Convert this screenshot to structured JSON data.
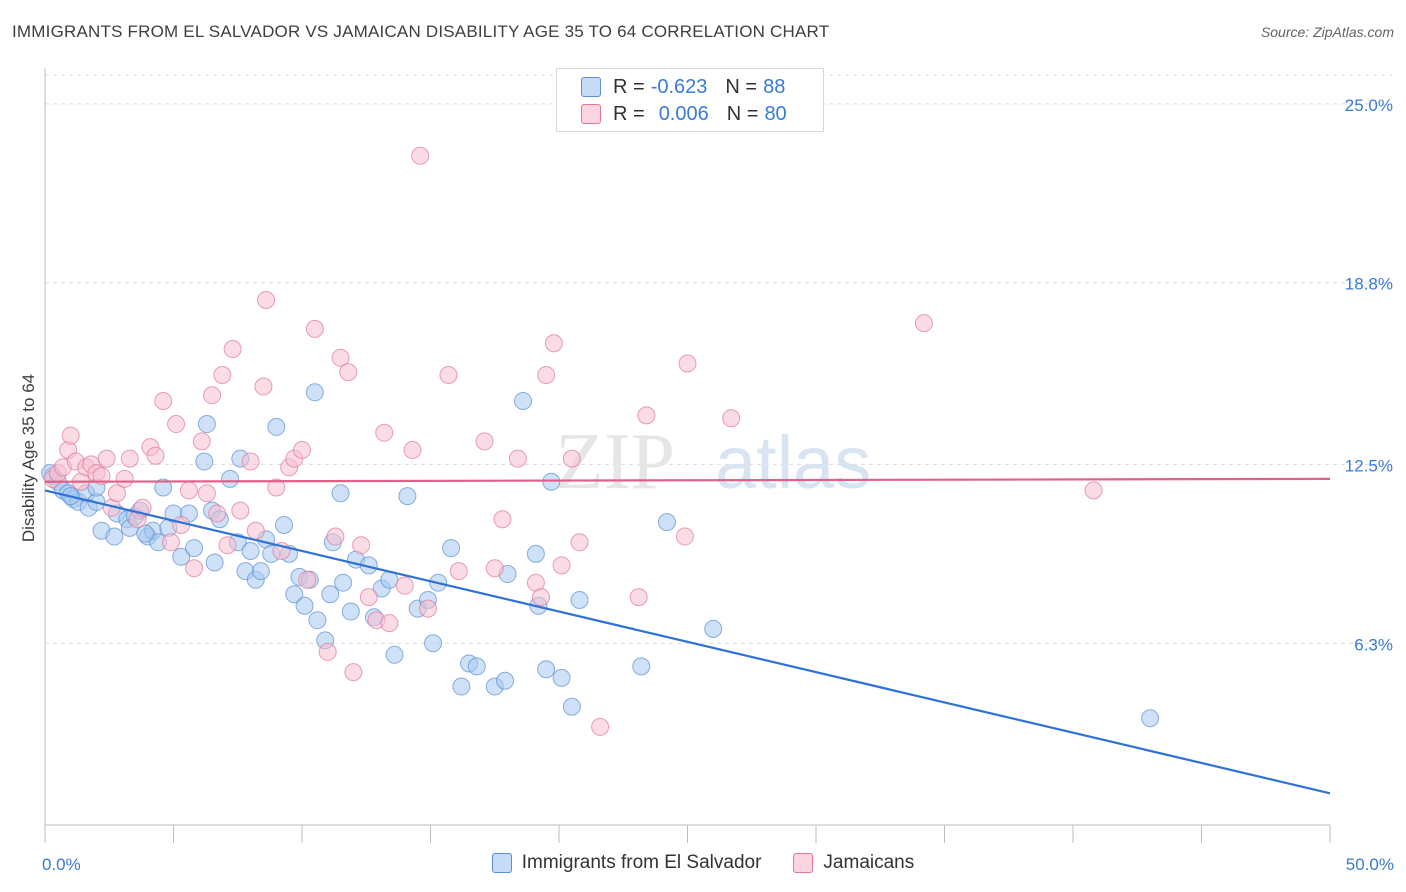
{
  "title": "IMMIGRANTS FROM EL SALVADOR VS JAMAICAN DISABILITY AGE 35 TO 64 CORRELATION CHART",
  "source": "Source: ZipAtlas.com",
  "watermark": {
    "zip": "ZIP",
    "atlas": "atlas"
  },
  "legend": {
    "r_label": "R =",
    "n_label": "N =",
    "rows": [
      {
        "r": "-0.623",
        "n": "88",
        "color": "#a8c8f0",
        "border": "#5b8fd4"
      },
      {
        "r": "0.006",
        "n": "80",
        "color": "#f8c0d0",
        "border": "#e07898"
      }
    ]
  },
  "chart_data": {
    "type": "scatter",
    "xlabel": "",
    "ylabel": "Disability Age 35 to 64",
    "xlim": [
      0,
      50
    ],
    "ylim": [
      0,
      26
    ],
    "x_tick_labels": [
      "0.0%",
      "50.0%"
    ],
    "y_tick_values": [
      6.3,
      12.5,
      18.8,
      25.0
    ],
    "y_tick_labels": [
      "6.3%",
      "12.5%",
      "18.8%",
      "25.0%"
    ],
    "grid": true,
    "series": [
      {
        "name": "Immigrants from El Salvador",
        "color": "#a8c8f0",
        "stroke": "#5b8fd4",
        "trend_color": "#2f72d6",
        "trend": {
          "x": [
            0,
            50
          ],
          "y": [
            11.6,
            1.1
          ]
        },
        "points": [
          [
            0.3,
            12.1
          ],
          [
            0.5,
            11.9
          ],
          [
            0.7,
            11.6
          ],
          [
            0.9,
            11.5
          ],
          [
            1.1,
            11.3
          ],
          [
            1.3,
            11.2
          ],
          [
            1.6,
            11.5
          ],
          [
            1.7,
            11.0
          ],
          [
            2.0,
            11.2
          ],
          [
            2.0,
            11.7
          ],
          [
            2.2,
            10.2
          ],
          [
            2.7,
            10.0
          ],
          [
            2.8,
            10.8
          ],
          [
            3.2,
            10.6
          ],
          [
            3.3,
            10.3
          ],
          [
            3.5,
            10.7
          ],
          [
            3.7,
            10.9
          ],
          [
            4.0,
            10.0
          ],
          [
            4.2,
            10.2
          ],
          [
            4.4,
            9.8
          ],
          [
            4.6,
            11.7
          ],
          [
            4.8,
            10.3
          ],
          [
            5.0,
            10.8
          ],
          [
            5.3,
            9.3
          ],
          [
            5.6,
            10.8
          ],
          [
            5.8,
            9.6
          ],
          [
            6.2,
            12.6
          ],
          [
            6.3,
            13.9
          ],
          [
            6.5,
            10.9
          ],
          [
            6.6,
            9.1
          ],
          [
            6.8,
            10.6
          ],
          [
            7.2,
            12.0
          ],
          [
            7.5,
            9.8
          ],
          [
            7.6,
            12.7
          ],
          [
            7.8,
            8.8
          ],
          [
            8.0,
            9.5
          ],
          [
            8.2,
            8.5
          ],
          [
            8.4,
            8.8
          ],
          [
            8.6,
            9.9
          ],
          [
            8.8,
            9.4
          ],
          [
            9.0,
            13.8
          ],
          [
            9.3,
            10.4
          ],
          [
            9.5,
            9.4
          ],
          [
            9.7,
            8.0
          ],
          [
            9.9,
            8.6
          ],
          [
            10.1,
            7.6
          ],
          [
            10.3,
            8.5
          ],
          [
            10.5,
            15.0
          ],
          [
            10.6,
            7.1
          ],
          [
            10.9,
            6.4
          ],
          [
            11.1,
            8.0
          ],
          [
            11.2,
            9.8
          ],
          [
            11.5,
            11.5
          ],
          [
            11.6,
            8.4
          ],
          [
            11.9,
            7.4
          ],
          [
            12.1,
            9.2
          ],
          [
            12.6,
            9.0
          ],
          [
            12.8,
            7.2
          ],
          [
            13.1,
            8.2
          ],
          [
            13.4,
            8.5
          ],
          [
            13.6,
            5.9
          ],
          [
            14.1,
            11.4
          ],
          [
            14.5,
            7.5
          ],
          [
            14.9,
            7.8
          ],
          [
            15.1,
            6.3
          ],
          [
            15.3,
            8.4
          ],
          [
            15.8,
            9.6
          ],
          [
            16.2,
            4.8
          ],
          [
            16.5,
            5.6
          ],
          [
            16.8,
            5.5
          ],
          [
            17.5,
            4.8
          ],
          [
            17.9,
            5.0
          ],
          [
            18.0,
            8.7
          ],
          [
            18.6,
            14.7
          ],
          [
            19.1,
            9.4
          ],
          [
            19.2,
            7.6
          ],
          [
            19.5,
            5.4
          ],
          [
            19.7,
            11.9
          ],
          [
            20.1,
            5.1
          ],
          [
            20.5,
            4.1
          ],
          [
            20.8,
            7.8
          ],
          [
            23.2,
            5.5
          ],
          [
            24.2,
            10.5
          ],
          [
            26.0,
            6.8
          ],
          [
            43.0,
            3.7
          ],
          [
            0.2,
            12.2
          ],
          [
            1.0,
            11.4
          ],
          [
            3.9,
            10.1
          ]
        ]
      },
      {
        "name": "Jamaicans",
        "color": "#f8c0d0",
        "stroke": "#e07898",
        "trend_color": "#e0608a",
        "trend": {
          "x": [
            0,
            50
          ],
          "y": [
            11.9,
            12.0
          ]
        },
        "points": [
          [
            0.3,
            12.0
          ],
          [
            0.5,
            12.2
          ],
          [
            0.7,
            12.4
          ],
          [
            0.9,
            13.0
          ],
          [
            1.0,
            13.5
          ],
          [
            1.2,
            12.6
          ],
          [
            1.4,
            11.9
          ],
          [
            1.6,
            12.4
          ],
          [
            1.8,
            12.5
          ],
          [
            2.0,
            12.2
          ],
          [
            2.2,
            12.1
          ],
          [
            2.4,
            12.7
          ],
          [
            2.6,
            11.0
          ],
          [
            2.8,
            11.5
          ],
          [
            3.1,
            12.0
          ],
          [
            3.3,
            12.7
          ],
          [
            3.6,
            10.6
          ],
          [
            3.8,
            11.0
          ],
          [
            4.1,
            13.1
          ],
          [
            4.3,
            12.8
          ],
          [
            4.6,
            14.7
          ],
          [
            4.9,
            9.8
          ],
          [
            5.1,
            13.9
          ],
          [
            5.3,
            10.4
          ],
          [
            5.6,
            11.6
          ],
          [
            5.8,
            8.9
          ],
          [
            6.1,
            13.3
          ],
          [
            6.3,
            11.5
          ],
          [
            6.5,
            14.9
          ],
          [
            6.7,
            10.8
          ],
          [
            6.9,
            15.6
          ],
          [
            7.1,
            9.7
          ],
          [
            7.3,
            16.5
          ],
          [
            7.6,
            10.9
          ],
          [
            8.0,
            12.6
          ],
          [
            8.2,
            10.2
          ],
          [
            8.5,
            15.2
          ],
          [
            8.6,
            18.2
          ],
          [
            9.0,
            11.7
          ],
          [
            9.2,
            9.5
          ],
          [
            9.5,
            12.4
          ],
          [
            9.7,
            12.7
          ],
          [
            10.0,
            13.0
          ],
          [
            10.2,
            8.5
          ],
          [
            10.5,
            17.2
          ],
          [
            11.0,
            6.0
          ],
          [
            11.3,
            10.0
          ],
          [
            11.5,
            16.2
          ],
          [
            11.8,
            15.7
          ],
          [
            12.0,
            5.3
          ],
          [
            12.3,
            9.7
          ],
          [
            12.6,
            7.9
          ],
          [
            12.9,
            7.1
          ],
          [
            13.2,
            13.6
          ],
          [
            13.4,
            7.0
          ],
          [
            14.0,
            8.3
          ],
          [
            14.3,
            13.0
          ],
          [
            14.6,
            23.2
          ],
          [
            14.9,
            7.5
          ],
          [
            15.7,
            15.6
          ],
          [
            16.1,
            8.8
          ],
          [
            17.1,
            13.3
          ],
          [
            17.5,
            8.9
          ],
          [
            17.8,
            10.6
          ],
          [
            18.4,
            12.7
          ],
          [
            19.1,
            8.4
          ],
          [
            19.3,
            7.9
          ],
          [
            19.5,
            15.6
          ],
          [
            19.8,
            16.7
          ],
          [
            20.1,
            9.0
          ],
          [
            20.5,
            12.7
          ],
          [
            20.8,
            9.8
          ],
          [
            23.1,
            7.9
          ],
          [
            23.4,
            14.2
          ],
          [
            25.0,
            16.0
          ],
          [
            26.7,
            14.1
          ],
          [
            34.2,
            17.4
          ],
          [
            40.8,
            11.6
          ],
          [
            21.6,
            3.4
          ],
          [
            24.9,
            10.0
          ]
        ]
      }
    ]
  },
  "bottom_legend": [
    {
      "label": "Immigrants from El Salvador",
      "color": "#a8c8f0",
      "border": "#5b8fd4"
    },
    {
      "label": "Jamaicans",
      "color": "#f8c0d0",
      "border": "#e07898"
    }
  ]
}
